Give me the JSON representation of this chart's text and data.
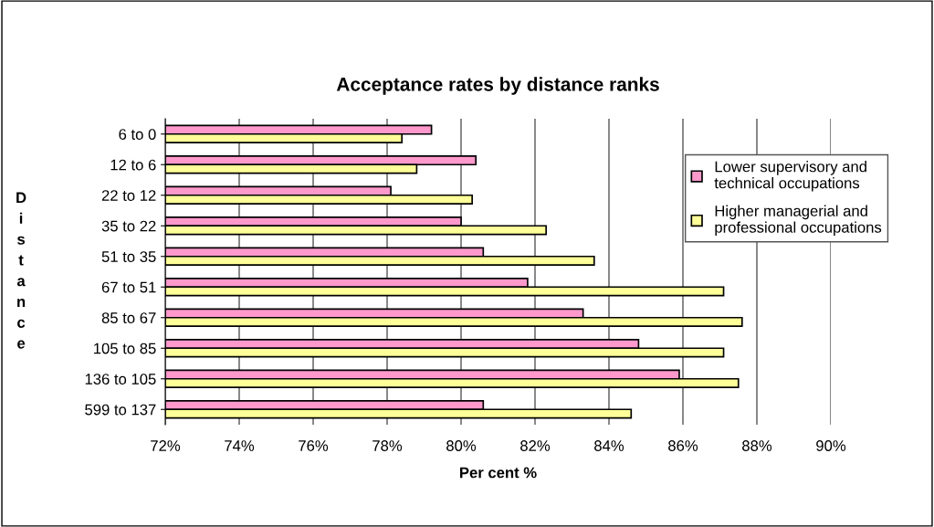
{
  "chart_data": {
    "type": "bar",
    "orientation": "horizontal",
    "title": "Acceptance rates by distance ranks",
    "xlabel": "Per cent %",
    "ylabel": "Distance",
    "categories": [
      "6 to 0",
      "12 to 6",
      "22 to 12",
      "35 to 22",
      "51 to 35",
      "67 to 51",
      "85 to 67",
      "105 to 85",
      "136 to 105",
      "599 to 137"
    ],
    "series": [
      {
        "name": "Lower supervisory and\ntechnical occupations",
        "color": "#ff99cc",
        "values": [
          79.2,
          80.4,
          78.1,
          80.0,
          80.6,
          81.8,
          83.3,
          84.8,
          85.9,
          80.6
        ]
      },
      {
        "name": "Higher managerial and\nprofessional occupations",
        "color": "#ffff99",
        "values": [
          78.4,
          78.8,
          80.3,
          82.3,
          83.6,
          87.1,
          87.6,
          87.1,
          87.5,
          84.6
        ]
      }
    ],
    "xlim": [
      72,
      90
    ],
    "xticks": [
      {
        "value": 72,
        "label": "72%"
      },
      {
        "value": 74,
        "label": "74%"
      },
      {
        "value": 76,
        "label": "76%"
      },
      {
        "value": 78,
        "label": "78%"
      },
      {
        "value": 80,
        "label": "80%"
      },
      {
        "value": 82,
        "label": "82%"
      },
      {
        "value": 84,
        "label": "84%"
      },
      {
        "value": 86,
        "label": "86%"
      },
      {
        "value": 88,
        "label": "88%"
      },
      {
        "value": 90,
        "label": "90%"
      }
    ],
    "grid": "x",
    "legend": "right"
  }
}
